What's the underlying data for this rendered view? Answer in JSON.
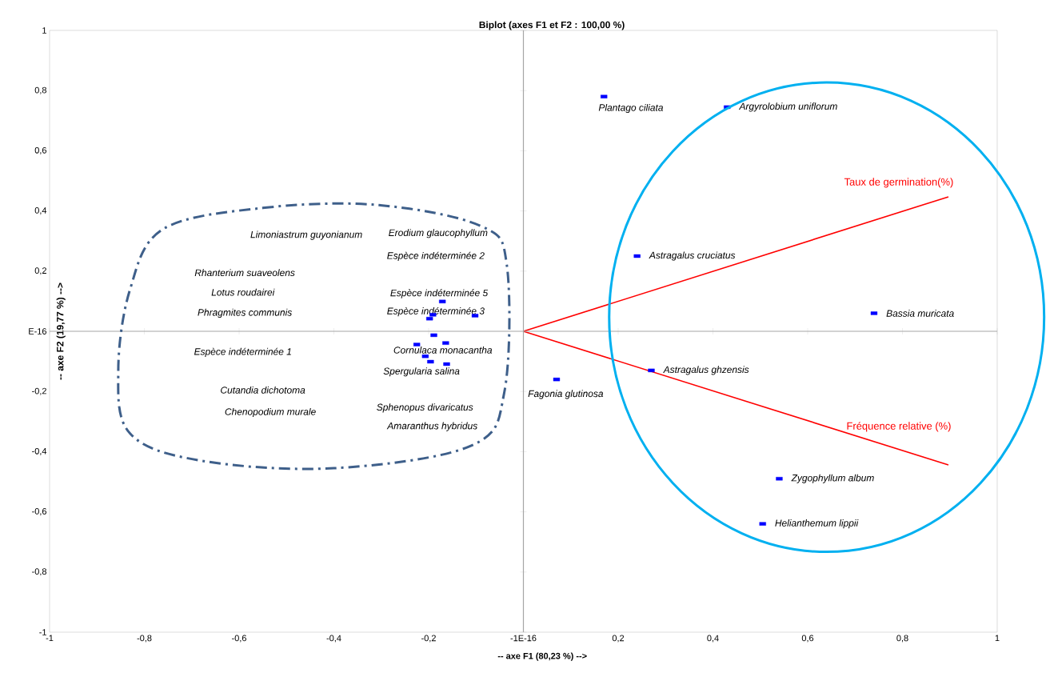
{
  "chart_data": {
    "type": "scatter",
    "title": "Biplot (axes F1 et F2 : 100,00 %)",
    "xlabel": "-- axe F1 (80,23 %) -->",
    "ylabel": "-- axe F2 (19,77 %) -->",
    "xlim": [
      -1,
      1
    ],
    "ylim": [
      -1,
      1
    ],
    "xticks": [
      -1,
      {
        "value": -0.8,
        "label": "-0,8"
      },
      {
        "value": -0.6,
        "label": "-0,6"
      },
      {
        "value": -0.4,
        "label": "-0,4"
      },
      {
        "value": -0.2,
        "label": "-0,2"
      },
      {
        "value": 0,
        "label": "-1E-16"
      },
      {
        "value": 0.2,
        "label": "0,2"
      },
      {
        "value": 0.4,
        "label": "0,4"
      },
      {
        "value": 0.6,
        "label": "0,6"
      },
      {
        "value": 0.8,
        "label": "0,8"
      },
      1
    ],
    "yticks": [
      -1,
      {
        "value": -0.8,
        "label": "-0,8"
      },
      {
        "value": -0.6,
        "label": "-0,6"
      },
      {
        "value": -0.4,
        "label": "-0,4"
      },
      {
        "value": -0.2,
        "label": "-0,2"
      },
      {
        "value": 0,
        "label": "E-16"
      },
      {
        "value": 0.2,
        "label": "0,2"
      },
      {
        "value": 0.4,
        "label": "0,4"
      },
      {
        "value": 0.6,
        "label": "0,6"
      },
      {
        "value": 0.8,
        "label": "0,8"
      },
      1
    ],
    "series": [
      {
        "marker": "square",
        "color": "#0000ff",
        "x": [
          0.17,
          0.43,
          0.24,
          0.74,
          0.27,
          0.07,
          0.54,
          0.505,
          -0.171,
          -0.191,
          -0.198,
          -0.102,
          -0.189,
          -0.225,
          -0.164,
          -0.207,
          -0.196,
          -0.162
        ],
        "values": [
          0.78,
          0.745,
          0.25,
          0.06,
          -0.13,
          -0.16,
          -0.49,
          -0.64,
          0.099,
          0.055,
          0.042,
          0.052,
          -0.013,
          -0.044,
          -0.039,
          -0.083,
          -0.101,
          -0.109
        ],
        "value_labels": [
          "Plantago ciliata",
          "Argyrolobium uniflorum",
          "Astragalus cruciatus",
          "Bassia muricata",
          "Astragalus ghzensis",
          "Fagonia glutinosa",
          "Zygophyllum album",
          "Helianthemum lippii",
          null,
          null,
          null,
          null,
          null,
          null,
          null,
          null,
          null,
          null
        ]
      },
      {
        "type": "line",
        "name": "Taux de germination(%)",
        "color": "#ff0000",
        "x": [
          0,
          0.897
        ],
        "values": [
          0,
          0.447
        ]
      },
      {
        "type": "line",
        "name": "Fréquence relative (%)",
        "color": "#ff0000",
        "x": [
          0,
          0.897
        ],
        "values": [
          0,
          -0.444
        ]
      }
    ],
    "annotations": [
      "Limoniastrum guyonianum",
      "Erodium glaucophyllum",
      "Espèce indéterminée 2",
      "Rhanterium  suaveolens",
      "Lotus roudairei",
      "Phragmites communis",
      "Espèce indéterminée 5",
      "Espèce indéterminée 3",
      "Espèce indéterminée 1",
      "Cornulaca monacantha",
      "Spergularia salina",
      "Cutandia dichotoma",
      "Chenopodium murale",
      "Sphenopus divaricatus",
      "Amaranthus hybridus"
    ]
  }
}
